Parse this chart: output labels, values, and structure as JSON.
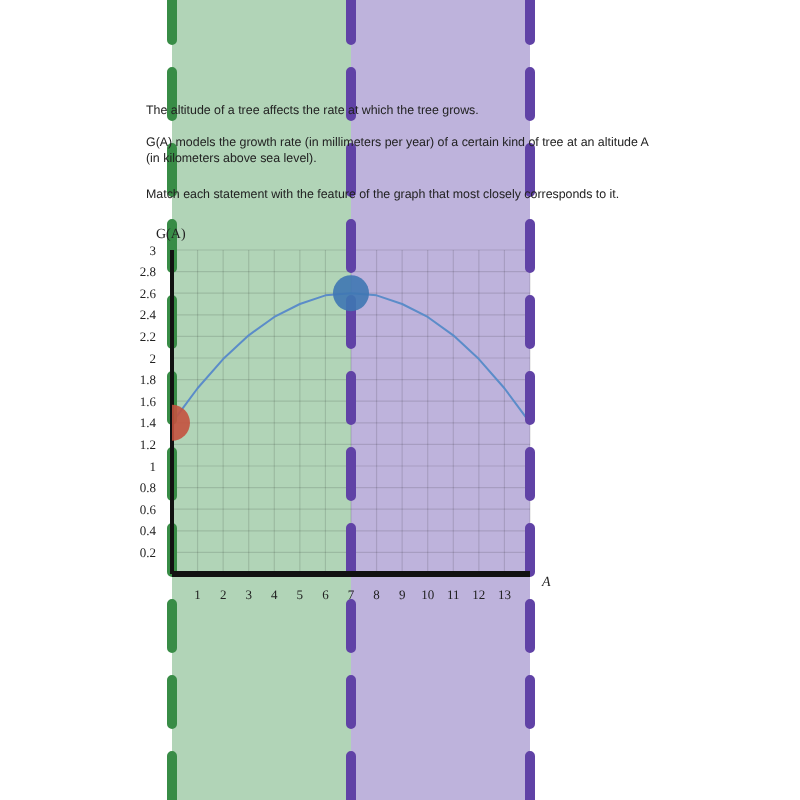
{
  "chart_data": {
    "type": "line",
    "title": "The altitude of a tree affects the rate at which the tree grows.",
    "subtitle": "G(A) models the growth rate (in millimeters per year) of a certain kind of tree at an altitude A (in kilometers above sea level).",
    "annotations": [
      "Match each statement with the feature of the graph that most closely corresponds to it."
    ],
    "xlabel": "A",
    "ylabel": "G(A)",
    "xlim": [
      0,
      14
    ],
    "xticks": [
      1,
      2,
      3,
      4,
      5,
      6,
      7,
      8,
      9,
      10,
      11,
      12,
      13
    ],
    "ylim": [
      0,
      3
    ],
    "yticks": [
      0.2,
      0.4,
      0.6,
      0.8,
      1,
      1.2,
      1.4,
      1.6,
      1.8,
      2,
      2.2,
      2.4,
      2.6,
      2.8,
      3
    ],
    "grid": true,
    "bands": [
      {
        "axis": "x",
        "from": 0,
        "to": 7,
        "color": "#b1d4b7"
      },
      {
        "axis": "x",
        "from": 7,
        "to": 14,
        "color": "#beb3dc"
      }
    ],
    "ref_lines": [
      {
        "axis": "x",
        "value": 0,
        "color": "#388c46",
        "line_style": "dashed"
      },
      {
        "axis": "x",
        "value": 7,
        "color": "#6042a6",
        "line_style": "dashed"
      },
      {
        "axis": "x",
        "value": 14,
        "color": "#6042a6",
        "line_style": "dashed"
      }
    ],
    "series": [
      {
        "color": "#5b8cc9",
        "x": [
          0,
          1,
          2,
          3,
          4,
          5,
          6,
          7,
          8,
          9,
          10,
          11,
          12,
          13,
          14
        ],
        "values": [
          1.4,
          1.72,
          1.99,
          2.21,
          2.38,
          2.5,
          2.58,
          2.6,
          2.58,
          2.5,
          2.38,
          2.21,
          1.99,
          1.72,
          1.4
        ]
      },
      {
        "type": "scatter",
        "colors": [
          "#c4523f",
          "#3f77b3"
        ],
        "x": [
          0,
          7
        ],
        "values": [
          1.4,
          2.6
        ]
      }
    ]
  }
}
